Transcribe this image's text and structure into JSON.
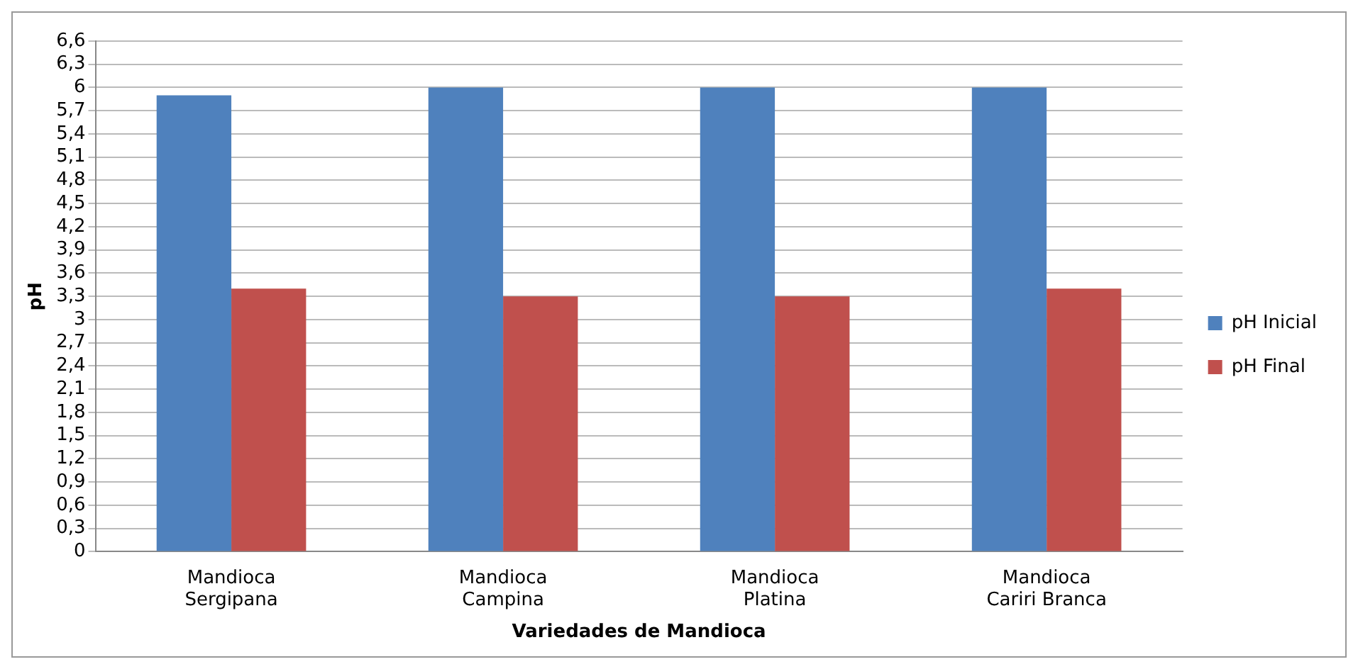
{
  "chart_data": {
    "type": "bar",
    "xlabel": "Variedades de Mandioca",
    "ylabel": "pH",
    "categories": [
      "Mandioca Sergipana",
      "Mandioca Campina",
      "Mandioca Platina",
      "Mandioca Cariri Branca"
    ],
    "series": [
      {
        "name": "pH Inicial",
        "color": "#4f81bd",
        "values": [
          5.9,
          6.0,
          6.0,
          6.0
        ]
      },
      {
        "name": "pH Final",
        "color": "#c0504d",
        "values": [
          3.4,
          3.3,
          3.3,
          3.4
        ]
      }
    ],
    "ylim": [
      0,
      6.6
    ],
    "yticks": [
      0,
      {
        "value": 0.3,
        "label": "0,3"
      },
      {
        "value": 0.6,
        "label": "0,6"
      },
      {
        "value": 0.9,
        "label": "0,9"
      },
      {
        "value": 1.2,
        "label": "1,2"
      },
      {
        "value": 1.5,
        "label": "1,5"
      },
      {
        "value": 1.8,
        "label": "1,8"
      },
      {
        "value": 2.1,
        "label": "2,1"
      },
      {
        "value": 2.4,
        "label": "2,4"
      },
      {
        "value": 2.7,
        "label": "2,7"
      },
      3,
      {
        "value": 3.3,
        "label": "3,3"
      },
      {
        "value": 3.6,
        "label": "3,6"
      },
      {
        "value": 3.9,
        "label": "3,9"
      },
      {
        "value": 4.2,
        "label": "4,2"
      },
      {
        "value": 4.5,
        "label": "4,5"
      },
      {
        "value": 4.8,
        "label": "4,8"
      },
      {
        "value": 5.1,
        "label": "5,1"
      },
      {
        "value": 5.4,
        "label": "5,4"
      },
      {
        "value": 5.7,
        "label": "5,7"
      },
      6,
      {
        "value": 6.3,
        "label": "6,3"
      },
      {
        "value": 6.6,
        "label": "6,6"
      }
    ],
    "grid": "y",
    "legend": "right"
  }
}
